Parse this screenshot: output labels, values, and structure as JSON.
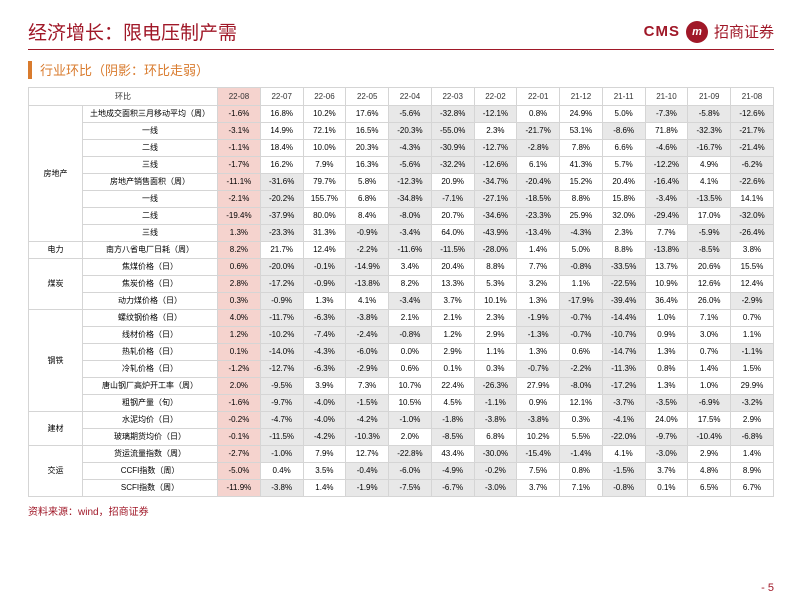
{
  "title": "经济增长：限电压制产需",
  "brand": {
    "cms": "CMS",
    "logo": "m",
    "cn": "招商证券"
  },
  "subtitle": "行业环比（阴影：环比走弱）",
  "topHeader": "环比",
  "periods": [
    "22-08",
    "22-07",
    "22-06",
    "22-05",
    "22-04",
    "22-03",
    "22-02",
    "22-01",
    "21-12",
    "21-11",
    "21-10",
    "21-09",
    "21-08"
  ],
  "highlightCol": 0,
  "categories": [
    {
      "name": "房地产",
      "rows": [
        {
          "ind": "土地成交面积三月移动平均（周）",
          "v": [
            "-1.6%",
            "16.8%",
            "10.2%",
            "17.6%",
            "-5.6%",
            "-32.8%",
            "-12.1%",
            "0.8%",
            "24.9%",
            "5.0%",
            "-7.3%",
            "-5.8%",
            "-12.6%"
          ],
          "s": [
            1,
            0,
            0,
            0,
            1,
            1,
            1,
            0,
            0,
            0,
            1,
            1,
            1
          ]
        },
        {
          "ind": "一线",
          "v": [
            "-3.1%",
            "14.9%",
            "72.1%",
            "16.5%",
            "-20.3%",
            "-55.0%",
            "2.3%",
            "-21.7%",
            "53.1%",
            "-8.6%",
            "71.8%",
            "-32.3%",
            "-21.7%"
          ],
          "s": [
            1,
            0,
            0,
            0,
            1,
            1,
            0,
            1,
            0,
            1,
            0,
            1,
            1
          ]
        },
        {
          "ind": "二线",
          "v": [
            "-1.1%",
            "18.4%",
            "10.0%",
            "20.3%",
            "-4.3%",
            "-30.9%",
            "-12.7%",
            "-2.8%",
            "7.8%",
            "6.6%",
            "-4.6%",
            "-16.7%",
            "-21.4%"
          ],
          "s": [
            1,
            0,
            0,
            0,
            1,
            1,
            1,
            1,
            0,
            0,
            1,
            1,
            1
          ]
        },
        {
          "ind": "三线",
          "v": [
            "-1.7%",
            "16.2%",
            "7.9%",
            "16.3%",
            "-5.6%",
            "-32.2%",
            "-12.6%",
            "6.1%",
            "41.3%",
            "5.7%",
            "-12.2%",
            "4.9%",
            "-6.2%"
          ],
          "s": [
            1,
            0,
            0,
            0,
            1,
            1,
            1,
            0,
            0,
            0,
            1,
            0,
            1
          ]
        },
        {
          "ind": "房地产销售面积（周）",
          "v": [
            "-11.1%",
            "-31.6%",
            "79.7%",
            "5.8%",
            "-12.3%",
            "20.9%",
            "-34.7%",
            "-20.4%",
            "15.2%",
            "20.4%",
            "-16.4%",
            "4.1%",
            "-22.6%"
          ],
          "s": [
            1,
            1,
            0,
            0,
            1,
            0,
            1,
            1,
            0,
            0,
            1,
            0,
            1
          ]
        },
        {
          "ind": "一线",
          "v": [
            "-2.1%",
            "-20.2%",
            "155.7%",
            "6.8%",
            "-34.8%",
            "-7.1%",
            "-27.1%",
            "-18.5%",
            "8.8%",
            "15.8%",
            "-3.4%",
            "-13.5%",
            "14.1%"
          ],
          "s": [
            1,
            1,
            0,
            0,
            1,
            1,
            1,
            1,
            0,
            0,
            1,
            1,
            0
          ]
        },
        {
          "ind": "二线",
          "v": [
            "-19.4%",
            "-37.9%",
            "80.0%",
            "8.4%",
            "-8.0%",
            "20.7%",
            "-34.6%",
            "-23.3%",
            "25.9%",
            "32.0%",
            "-29.4%",
            "17.0%",
            "-32.0%"
          ],
          "s": [
            1,
            1,
            0,
            0,
            1,
            0,
            1,
            1,
            0,
            0,
            1,
            0,
            1
          ]
        },
        {
          "ind": "三线",
          "v": [
            "1.3%",
            "-23.3%",
            "31.3%",
            "-0.9%",
            "-3.4%",
            "64.0%",
            "-43.9%",
            "-13.4%",
            "-4.3%",
            "2.3%",
            "7.7%",
            "-5.9%",
            "-26.4%"
          ],
          "s": [
            0,
            1,
            0,
            1,
            1,
            0,
            1,
            1,
            1,
            0,
            0,
            1,
            1
          ]
        }
      ]
    },
    {
      "name": "电力",
      "rows": [
        {
          "ind": "南方八省电厂日耗（周）",
          "v": [
            "8.2%",
            "21.7%",
            "12.4%",
            "-2.2%",
            "-11.6%",
            "-11.5%",
            "-28.0%",
            "1.4%",
            "5.0%",
            "8.8%",
            "-13.8%",
            "-8.5%",
            "3.8%"
          ],
          "s": [
            0,
            0,
            0,
            1,
            1,
            1,
            1,
            0,
            0,
            0,
            1,
            1,
            0
          ]
        }
      ]
    },
    {
      "name": "煤炭",
      "rows": [
        {
          "ind": "焦煤价格（日）",
          "v": [
            "0.6%",
            "-20.0%",
            "-0.1%",
            "-14.9%",
            "3.4%",
            "20.4%",
            "8.8%",
            "7.7%",
            "-0.8%",
            "-33.5%",
            "13.7%",
            "20.6%",
            "15.5%"
          ],
          "s": [
            0,
            1,
            1,
            1,
            0,
            0,
            0,
            0,
            1,
            1,
            0,
            0,
            0
          ]
        },
        {
          "ind": "焦炭价格（日）",
          "v": [
            "2.8%",
            "-17.2%",
            "-0.9%",
            "-13.8%",
            "8.2%",
            "13.3%",
            "5.3%",
            "3.2%",
            "1.1%",
            "-22.5%",
            "10.9%",
            "12.6%",
            "12.4%"
          ],
          "s": [
            0,
            1,
            1,
            1,
            0,
            0,
            0,
            0,
            0,
            1,
            0,
            0,
            0
          ]
        },
        {
          "ind": "动力煤价格（日）",
          "v": [
            "0.3%",
            "-0.9%",
            "1.3%",
            "4.1%",
            "-3.4%",
            "3.7%",
            "10.1%",
            "1.3%",
            "-17.9%",
            "-39.4%",
            "36.4%",
            "26.0%",
            "-2.9%"
          ],
          "s": [
            0,
            1,
            0,
            0,
            1,
            0,
            0,
            0,
            1,
            1,
            0,
            0,
            1
          ]
        }
      ]
    },
    {
      "name": "钢铁",
      "rows": [
        {
          "ind": "螺纹钢价格（日）",
          "v": [
            "4.0%",
            "-11.7%",
            "-6.3%",
            "-3.8%",
            "2.1%",
            "2.1%",
            "2.3%",
            "-1.9%",
            "-0.7%",
            "-14.4%",
            "1.0%",
            "7.1%",
            "0.7%"
          ],
          "s": [
            0,
            1,
            1,
            1,
            0,
            0,
            0,
            1,
            1,
            1,
            0,
            0,
            0
          ]
        },
        {
          "ind": "线材价格（日）",
          "v": [
            "1.2%",
            "-10.2%",
            "-7.4%",
            "-2.4%",
            "-0.8%",
            "1.2%",
            "2.9%",
            "-1.3%",
            "-0.7%",
            "-10.7%",
            "0.9%",
            "3.0%",
            "1.1%"
          ],
          "s": [
            0,
            1,
            1,
            1,
            1,
            0,
            0,
            1,
            1,
            1,
            0,
            0,
            0
          ]
        },
        {
          "ind": "热轧价格（日）",
          "v": [
            "0.1%",
            "-14.0%",
            "-4.3%",
            "-6.0%",
            "0.0%",
            "2.9%",
            "1.1%",
            "1.3%",
            "0.6%",
            "-14.7%",
            "1.3%",
            "0.7%",
            "-1.1%"
          ],
          "s": [
            0,
            1,
            1,
            1,
            0,
            0,
            0,
            0,
            0,
            1,
            0,
            0,
            1
          ]
        },
        {
          "ind": "冷轧价格（日）",
          "v": [
            "-1.2%",
            "-12.7%",
            "-6.3%",
            "-2.9%",
            "0.6%",
            "0.1%",
            "0.3%",
            "-0.7%",
            "-2.2%",
            "-11.3%",
            "0.8%",
            "1.4%",
            "1.5%"
          ],
          "s": [
            1,
            1,
            1,
            1,
            0,
            0,
            0,
            1,
            1,
            1,
            0,
            0,
            0
          ]
        },
        {
          "ind": "唐山钢厂高炉开工率（周）",
          "v": [
            "2.0%",
            "-9.5%",
            "3.9%",
            "7.3%",
            "10.7%",
            "22.4%",
            "-26.3%",
            "27.9%",
            "-8.0%",
            "-17.2%",
            "1.3%",
            "1.0%",
            "29.9%"
          ],
          "s": [
            0,
            1,
            0,
            0,
            0,
            0,
            1,
            0,
            1,
            1,
            0,
            0,
            0
          ]
        },
        {
          "ind": "粗钢产量（旬）",
          "v": [
            "-1.6%",
            "-9.7%",
            "-4.0%",
            "-1.5%",
            "10.5%",
            "4.5%",
            "-1.1%",
            "0.9%",
            "12.1%",
            "-3.7%",
            "-3.5%",
            "-6.9%",
            "-3.2%"
          ],
          "s": [
            1,
            1,
            1,
            1,
            0,
            0,
            1,
            0,
            0,
            1,
            1,
            1,
            1
          ]
        }
      ]
    },
    {
      "name": "建材",
      "rows": [
        {
          "ind": "水泥均价（日）",
          "v": [
            "-0.2%",
            "-4.7%",
            "-4.0%",
            "-4.2%",
            "-1.0%",
            "-1.8%",
            "-3.8%",
            "-3.8%",
            "0.3%",
            "-4.1%",
            "24.0%",
            "17.5%",
            "2.9%"
          ],
          "s": [
            1,
            1,
            1,
            1,
            1,
            1,
            1,
            1,
            0,
            1,
            0,
            0,
            0
          ]
        },
        {
          "ind": "玻璃期货均价（日）",
          "v": [
            "-0.1%",
            "-11.5%",
            "-4.2%",
            "-10.3%",
            "2.0%",
            "-8.5%",
            "6.8%",
            "10.2%",
            "5.5%",
            "-22.0%",
            "-9.7%",
            "-10.4%",
            "-6.8%"
          ],
          "s": [
            1,
            1,
            1,
            1,
            0,
            1,
            0,
            0,
            0,
            1,
            1,
            1,
            1
          ]
        }
      ]
    },
    {
      "name": "交运",
      "rows": [
        {
          "ind": "货运流量指数（周）",
          "v": [
            "-2.7%",
            "-1.0%",
            "7.9%",
            "12.7%",
            "-22.8%",
            "43.4%",
            "-30.0%",
            "-15.4%",
            "-1.4%",
            "4.1%",
            "-3.0%",
            "2.9%",
            "1.4%"
          ],
          "s": [
            1,
            1,
            0,
            0,
            1,
            0,
            1,
            1,
            1,
            0,
            1,
            0,
            0
          ]
        },
        {
          "ind": "CCFI指数（周）",
          "v": [
            "-5.0%",
            "0.4%",
            "3.5%",
            "-0.4%",
            "-6.0%",
            "-4.9%",
            "-0.2%",
            "7.5%",
            "0.8%",
            "-1.5%",
            "3.7%",
            "4.8%",
            "8.9%"
          ],
          "s": [
            1,
            0,
            0,
            1,
            1,
            1,
            1,
            0,
            0,
            1,
            0,
            0,
            0
          ]
        },
        {
          "ind": "SCFI指数（周）",
          "v": [
            "-11.9%",
            "-3.8%",
            "1.4%",
            "-1.9%",
            "-7.5%",
            "-6.7%",
            "-3.0%",
            "3.7%",
            "7.1%",
            "-0.8%",
            "0.1%",
            "6.5%",
            "6.7%"
          ],
          "s": [
            1,
            1,
            0,
            1,
            1,
            1,
            1,
            0,
            0,
            1,
            0,
            0,
            0
          ]
        }
      ]
    }
  ],
  "source": "资料来源：wind，招商证券",
  "pageNum": "- 5"
}
